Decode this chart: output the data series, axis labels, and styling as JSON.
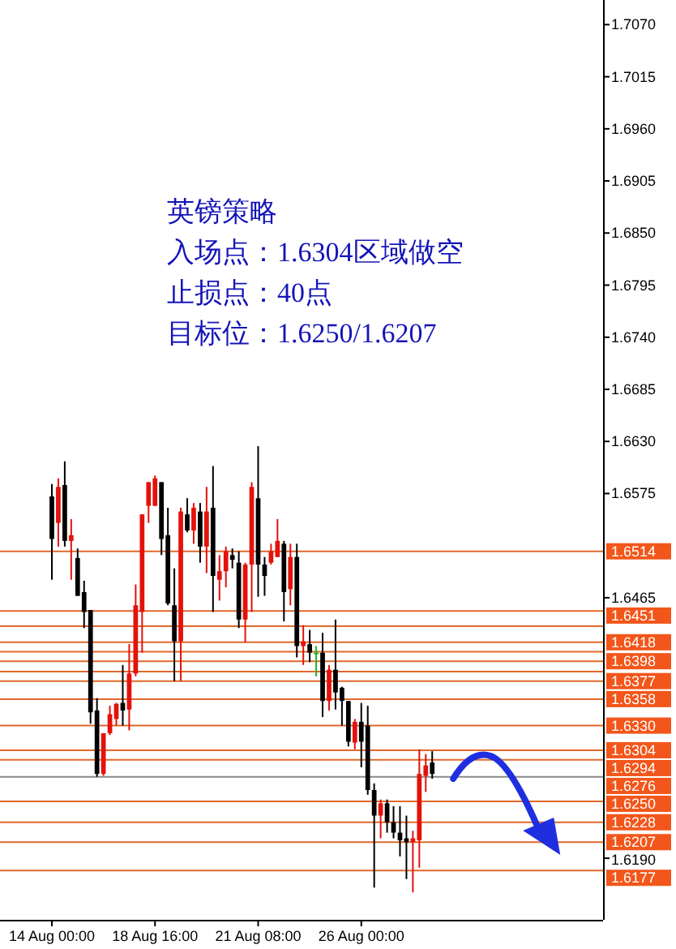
{
  "chart_data": {
    "type": "candlestick",
    "categories": [
      "14 Aug 00:00",
      null,
      null,
      null,
      null,
      null,
      null,
      null,
      null,
      null,
      null,
      null,
      null,
      null,
      null,
      null,
      "18 Aug 16:00",
      null,
      null,
      null,
      null,
      null,
      null,
      null,
      null,
      null,
      null,
      null,
      null,
      null,
      null,
      null,
      "21 Aug 08:00",
      null,
      null,
      null,
      null,
      null,
      null,
      null,
      null,
      null,
      null,
      null,
      null,
      null,
      null,
      null,
      "26 Aug 00:00",
      null,
      null,
      null,
      null,
      null,
      null,
      null,
      null,
      null,
      null,
      null,
      null,
      null,
      null,
      null,
      null,
      null,
      null,
      null,
      null,
      null,
      null,
      null,
      null,
      null,
      null,
      null,
      null,
      null,
      null,
      null,
      null,
      null,
      null,
      null,
      null,
      null
    ],
    "ohlc": [
      [
        1.6572,
        1.6585,
        1.6484,
        1.6527
      ],
      [
        1.6544,
        1.6591,
        1.6519,
        1.6582
      ],
      [
        1.6584,
        1.6609,
        1.6519,
        1.6525
      ],
      [
        1.6525,
        1.6548,
        1.6484,
        1.6531
      ],
      [
        1.6507,
        1.6517,
        1.6467,
        1.6467
      ],
      [
        1.6471,
        1.6483,
        1.6433,
        1.645
      ],
      [
        1.6452,
        1.6452,
        1.6332,
        1.6344
      ],
      [
        1.6346,
        1.6359,
        1.6276,
        1.6279
      ],
      [
        1.6279,
        1.6322,
        1.6277,
        1.6322
      ],
      [
        1.6322,
        1.6351,
        1.632,
        1.6342
      ],
      [
        1.6337,
        1.6354,
        1.633,
        1.6353
      ],
      [
        1.6354,
        1.6394,
        1.633,
        1.6346
      ],
      [
        1.6347,
        1.6416,
        1.6325,
        1.6385
      ],
      [
        1.6385,
        1.6479,
        1.6382,
        1.6457
      ],
      [
        1.645,
        1.6553,
        1.6407,
        1.6553
      ],
      [
        1.6562,
        1.6587,
        1.6544,
        1.6587
      ],
      [
        1.6562,
        1.6594,
        1.6562,
        1.6591
      ],
      [
        1.6587,
        1.6587,
        1.651,
        1.6527
      ],
      [
        1.6531,
        1.656,
        1.6457,
        1.6459
      ],
      [
        1.6457,
        1.6496,
        1.6377,
        1.6419
      ],
      [
        1.6419,
        1.656,
        1.6377,
        1.6556
      ],
      [
        1.6553,
        1.657,
        1.6534,
        1.6536
      ],
      [
        1.6536,
        1.6565,
        1.6522,
        1.656
      ],
      [
        1.6556,
        1.6565,
        1.6502,
        1.6519
      ],
      [
        1.6519,
        1.6582,
        1.6491,
        1.6556
      ],
      [
        1.656,
        1.6604,
        1.645,
        1.6488
      ],
      [
        1.6484,
        1.651,
        1.6462,
        1.6493
      ],
      [
        1.6493,
        1.6519,
        1.6476,
        1.6514
      ],
      [
        1.651,
        1.6517,
        1.6496,
        1.6505
      ],
      [
        1.6502,
        1.6514,
        1.6433,
        1.6442
      ],
      [
        1.6442,
        1.6502,
        1.6418,
        1.65
      ],
      [
        1.65,
        1.6587,
        1.645,
        1.6582
      ],
      [
        1.657,
        1.6625,
        1.6466,
        1.65
      ],
      [
        1.65,
        1.6508,
        1.6467,
        1.6488
      ],
      [
        1.6502,
        1.6522,
        1.65,
        1.6514
      ],
      [
        1.6508,
        1.6548,
        1.6508,
        1.6525
      ],
      [
        1.6522,
        1.6525,
        1.644,
        1.6471
      ],
      [
        1.6474,
        1.6522,
        1.6457,
        1.6508
      ],
      [
        1.6508,
        1.6522,
        1.6402,
        1.6414
      ],
      [
        1.6414,
        1.6436,
        1.6394,
        1.6419
      ],
      [
        1.6416,
        1.6431,
        1.6397,
        1.6407
      ],
      [
        1.6407,
        1.6414,
        1.6382,
        1.6407
      ],
      [
        1.6407,
        1.6428,
        1.6339,
        1.6356
      ],
      [
        1.6356,
        1.6394,
        1.6346,
        1.6389
      ],
      [
        1.6389,
        1.6442,
        1.6347,
        1.6365
      ],
      [
        1.637,
        1.6371,
        1.633,
        1.6356
      ],
      [
        1.6356,
        1.6356,
        1.6308,
        1.6313
      ],
      [
        1.6312,
        1.6337,
        1.6305,
        1.6334
      ],
      [
        1.6334,
        1.6354,
        1.6286,
        1.6313
      ],
      [
        1.633,
        1.6351,
        1.6257,
        1.6262
      ],
      [
        1.6262,
        1.6269,
        1.6159,
        1.6235
      ],
      [
        1.6235,
        1.6252,
        1.6211,
        1.6248
      ],
      [
        1.6248,
        1.6252,
        1.6217,
        1.6228
      ],
      [
        1.6228,
        1.6245,
        1.6211,
        1.6217
      ],
      [
        1.6217,
        1.6245,
        1.6192,
        1.6209
      ],
      [
        1.6211,
        1.6235,
        1.6168,
        1.6207
      ],
      [
        1.6207,
        1.6219,
        1.6154,
        1.6211
      ],
      [
        1.6209,
        1.6305,
        1.618,
        1.6279
      ],
      [
        1.6277,
        1.63,
        1.626,
        1.6288
      ],
      [
        1.6291,
        1.6303,
        1.6274,
        1.6279
      ],
      null,
      null,
      null,
      null,
      null,
      null,
      null,
      null,
      null,
      null,
      null,
      null,
      null,
      null,
      null,
      null,
      null,
      null,
      null,
      null,
      null,
      null,
      null,
      null,
      null,
      null
    ],
    "ylim": [
      1.6125,
      1.7096
    ],
    "yticks": [
      {
        "value": 1.707,
        "label": "1.7070"
      },
      1.7015,
      {
        "value": 1.696,
        "label": "1.6960"
      },
      1.6905,
      {
        "value": 1.685,
        "label": "1.6850"
      },
      1.6795,
      {
        "value": 1.674,
        "label": "1.6740"
      },
      1.6685,
      {
        "value": 1.663,
        "label": "1.6630"
      },
      1.6575,
      1.6465,
      {
        "value": 1.619,
        "label": "1.6190"
      }
    ],
    "ref_lines": [
      {
        "axis": "y",
        "value": 1.6514,
        "label": "1.6514"
      },
      {
        "axis": "y",
        "value": 1.6451,
        "label": "1.6451"
      },
      {
        "axis": "y",
        "value": 1.6435
      },
      {
        "axis": "y",
        "value": 1.6418,
        "label": "1.6418"
      },
      {
        "axis": "y",
        "value": 1.6408
      },
      {
        "axis": "y",
        "value": 1.6398,
        "label": "1.6398"
      },
      {
        "axis": "y",
        "value": 1.6387
      },
      {
        "axis": "y",
        "value": 1.6377,
        "label": "1.6377"
      },
      {
        "axis": "y",
        "value": 1.6358,
        "label": "1.6358"
      },
      {
        "axis": "y",
        "value": 1.633,
        "label": "1.6330"
      },
      {
        "axis": "y",
        "value": 1.6304,
        "label": "1.6304"
      },
      {
        "axis": "y",
        "value": 1.6294,
        "label": "1.6294"
      },
      {
        "axis": "y",
        "value": 1.6276,
        "label": "1.6276",
        "color": "#8a8a8a"
      },
      {
        "axis": "y",
        "value": 1.625,
        "label": "1.6250"
      },
      {
        "axis": "y",
        "value": 1.6228,
        "label": "1.6228"
      },
      {
        "axis": "y",
        "value": 1.6207,
        "label": "1.6207"
      },
      {
        "axis": "y",
        "value": 1.6177,
        "label": "1.6177"
      }
    ],
    "annotations": [
      "英镑策略",
      "入场点：1.6304区域做空",
      "止损点：40点",
      "目标位：1.6250/1.6207"
    ]
  }
}
